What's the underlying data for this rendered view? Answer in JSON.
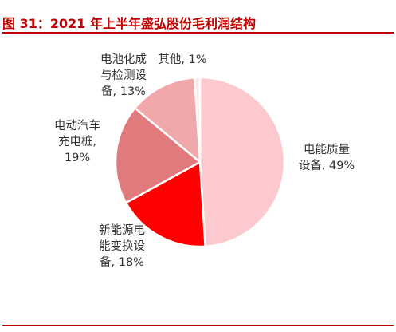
{
  "figure": {
    "title": "图 31：2021 年上半年盛弘股份毛利润结构"
  },
  "chart_data": {
    "type": "pie",
    "title": "图 31：2021 年上半年盛弘股份毛利润结构",
    "slices": [
      {
        "label_lines": [
          "电能质量",
          "设备, 49%"
        ],
        "value": 49,
        "color": "#FCCACE"
      },
      {
        "label_lines": [
          "新能源电",
          "能变换设",
          "备, 18%"
        ],
        "value": 18,
        "color": "#FF0000"
      },
      {
        "label_lines": [
          "电动汽车",
          "充电桩,",
          "19%"
        ],
        "value": 19,
        "color": "#E07A7C"
      },
      {
        "label_lines": [
          "电池化成",
          "与检测设",
          "备, 13%"
        ],
        "value": 13,
        "color": "#F0A8AA"
      },
      {
        "label_lines": [
          "其他, 1%"
        ],
        "value": 1,
        "color": "#FCE4E6"
      }
    ],
    "start": "12 o'clock",
    "direction": "clockwise",
    "legend": "none",
    "data_labels": "outside"
  },
  "colors": {
    "title": "#C00000",
    "rule": "#C00000",
    "slice_border": "#ffffff"
  }
}
